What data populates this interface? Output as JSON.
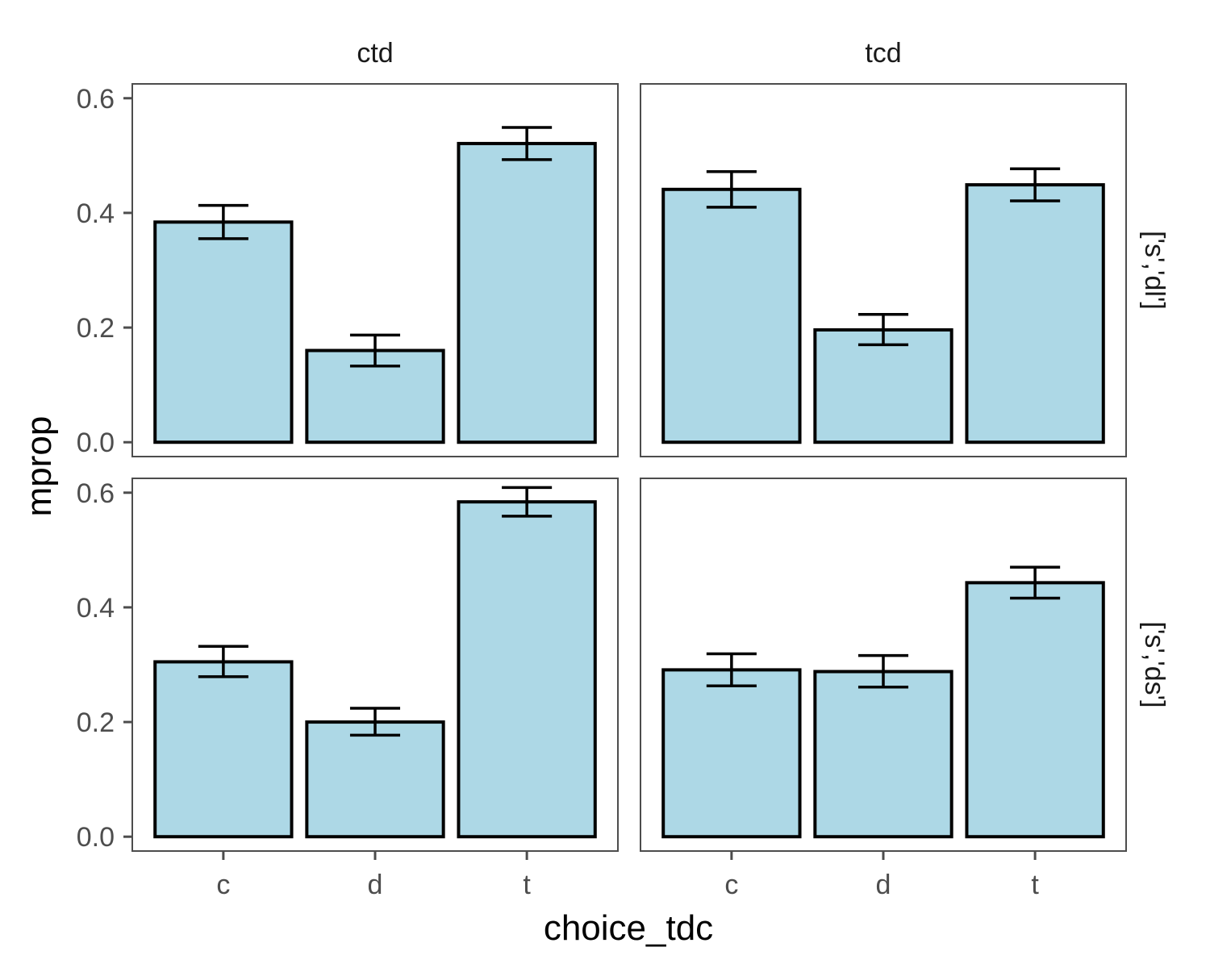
{
  "chart_data": {
    "type": "bar",
    "layout": "facet_grid",
    "xlabel": "choice_tdc",
    "ylabel": "mprop",
    "ylim": [
      -0.025,
      0.625
    ],
    "yticks": [
      0.0,
      0.2,
      0.4,
      0.6
    ],
    "ytick_labels": [
      "0.0",
      "0.2",
      "0.4",
      "0.6"
    ],
    "categories": [
      "c",
      "d",
      "t"
    ],
    "col_facets": [
      "ctd",
      "tcd"
    ],
    "row_facets": [
      "['s','dl']",
      "['s','ds']"
    ],
    "bar_fill": "#add8e6",
    "bar_outline": "#000000",
    "grid": false,
    "panels": [
      {
        "row": 0,
        "col": 0,
        "values": [
          0.384,
          0.16,
          0.521
        ],
        "error_low": [
          0.355,
          0.133,
          0.493
        ],
        "error_high": [
          0.413,
          0.187,
          0.549
        ]
      },
      {
        "row": 0,
        "col": 1,
        "values": [
          0.441,
          0.196,
          0.449
        ],
        "error_low": [
          0.41,
          0.17,
          0.421
        ],
        "error_high": [
          0.472,
          0.223,
          0.477
        ]
      },
      {
        "row": 1,
        "col": 0,
        "values": [
          0.305,
          0.2,
          0.584
        ],
        "error_low": [
          0.279,
          0.177,
          0.559
        ],
        "error_high": [
          0.332,
          0.224,
          0.609
        ]
      },
      {
        "row": 1,
        "col": 1,
        "values": [
          0.291,
          0.288,
          0.443
        ],
        "error_low": [
          0.263,
          0.261,
          0.416
        ],
        "error_high": [
          0.319,
          0.316,
          0.47
        ]
      }
    ]
  }
}
